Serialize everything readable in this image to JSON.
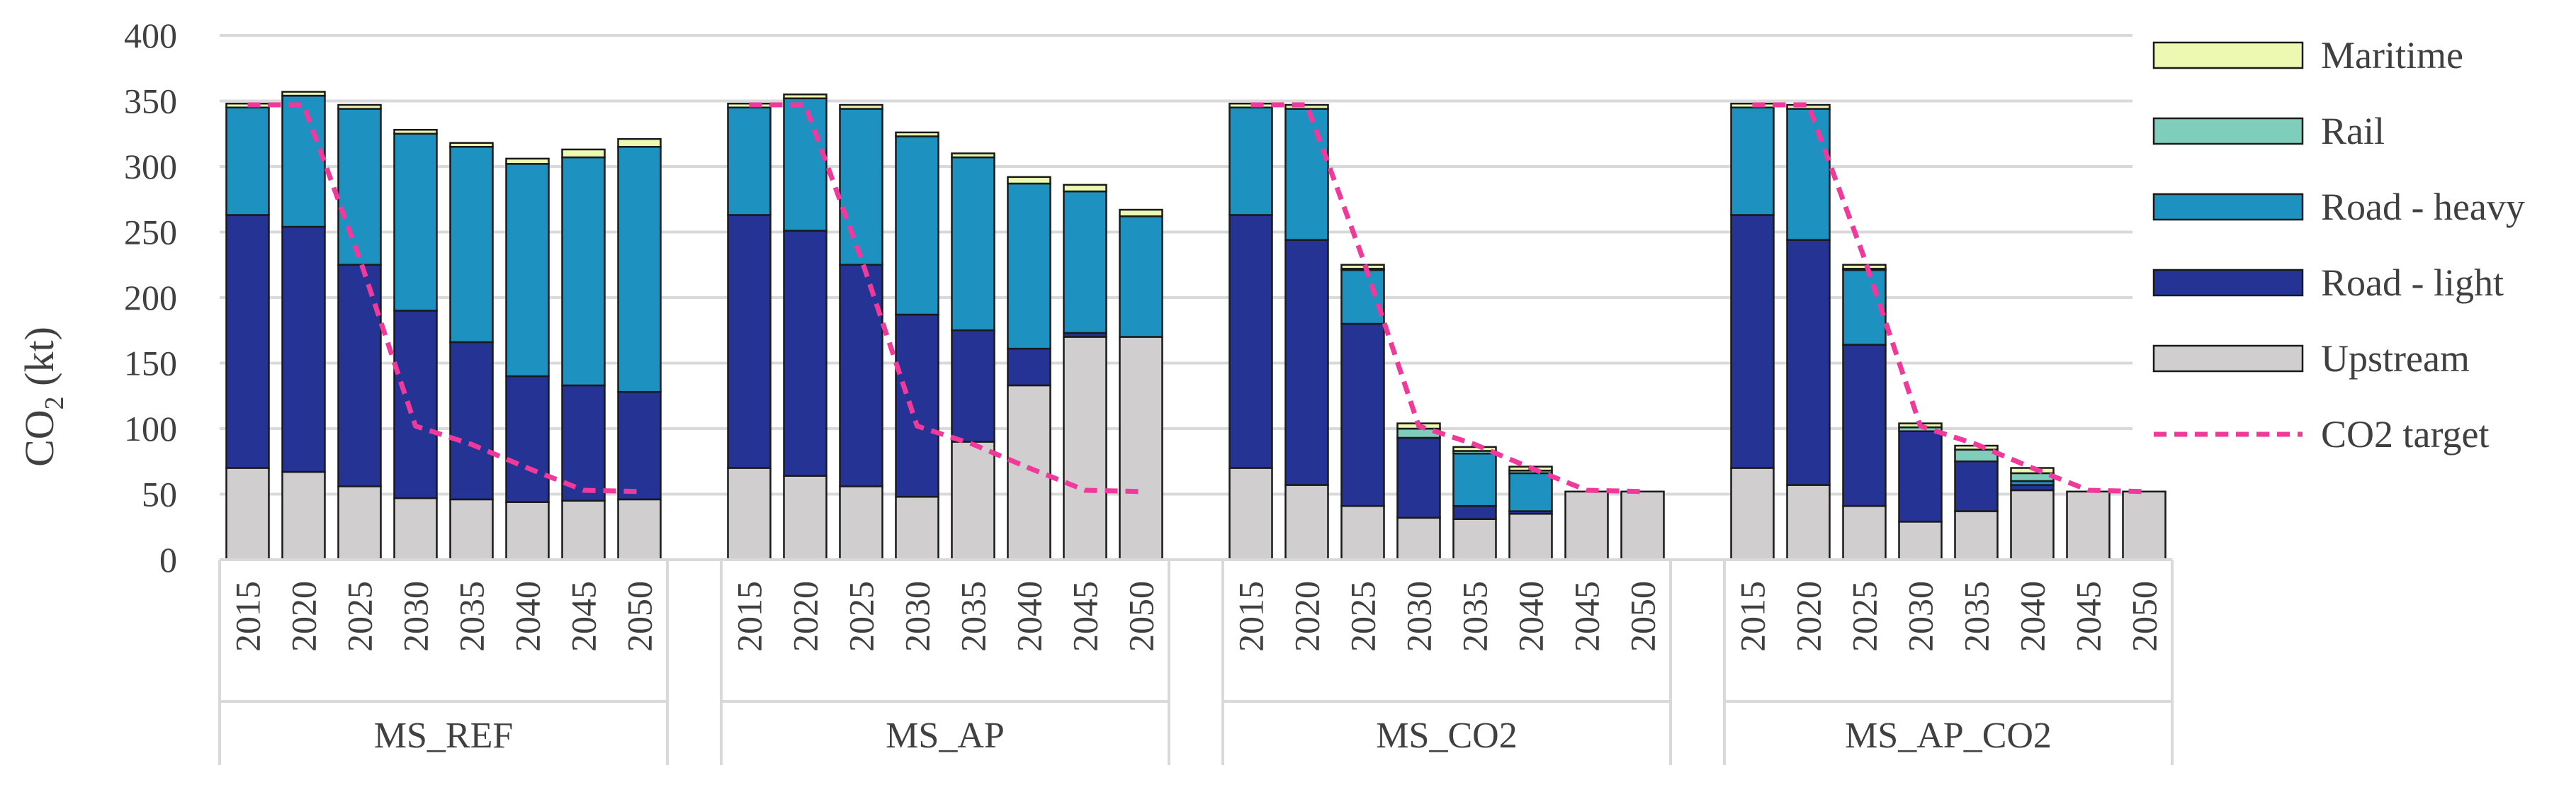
{
  "chart_data": {
    "type": "bar",
    "stacked": true,
    "ylabel": "CO",
    "ylabel_sub": "2",
    "ylabel_unit": " (kt)",
    "ylim": [
      0,
      400
    ],
    "yticks": [
      "0",
      "50",
      "100",
      "150",
      "200",
      "250",
      "300",
      "350",
      "400"
    ],
    "grid": true,
    "legend_position": "right",
    "groups": [
      {
        "name": "MS_REF",
        "years": [
          "2015",
          "2020",
          "2025",
          "2030",
          "2035",
          "2040",
          "2045",
          "2050"
        ],
        "stacks": [
          {
            "Upstream": 70,
            "Road - light": 193,
            "Road - heavy": 82,
            "Rail": 0,
            "Maritime": 3
          },
          {
            "Upstream": 67,
            "Road - light": 187,
            "Road - heavy": 100,
            "Rail": 0,
            "Maritime": 3
          },
          {
            "Upstream": 56,
            "Road - light": 169,
            "Road - heavy": 119,
            "Rail": 0,
            "Maritime": 3
          },
          {
            "Upstream": 47,
            "Road - light": 143,
            "Road - heavy": 135,
            "Rail": 0,
            "Maritime": 3
          },
          {
            "Upstream": 46,
            "Road - light": 120,
            "Road - heavy": 149,
            "Rail": 0,
            "Maritime": 3
          },
          {
            "Upstream": 44,
            "Road - light": 96,
            "Road - heavy": 162,
            "Rail": 0,
            "Maritime": 4
          },
          {
            "Upstream": 45,
            "Road - light": 88,
            "Road - heavy": 174,
            "Rail": 0,
            "Maritime": 6
          },
          {
            "Upstream": 46,
            "Road - light": 82,
            "Road - heavy": 187,
            "Rail": 0,
            "Maritime": 6
          }
        ],
        "target": [
          347,
          347,
          230,
          102,
          88,
          70,
          53,
          52
        ]
      },
      {
        "name": "MS_AP",
        "years": [
          "2015",
          "2020",
          "2025",
          "2030",
          "2035",
          "2040",
          "2045",
          "2050"
        ],
        "stacks": [
          {
            "Upstream": 70,
            "Road - light": 193,
            "Road - heavy": 82,
            "Rail": 0,
            "Maritime": 3
          },
          {
            "Upstream": 64,
            "Road - light": 187,
            "Road - heavy": 101,
            "Rail": 0,
            "Maritime": 3
          },
          {
            "Upstream": 56,
            "Road - light": 169,
            "Road - heavy": 119,
            "Rail": 0,
            "Maritime": 3
          },
          {
            "Upstream": 48,
            "Road - light": 139,
            "Road - heavy": 136,
            "Rail": 0,
            "Maritime": 3
          },
          {
            "Upstream": 90,
            "Road - light": 85,
            "Road - heavy": 132,
            "Rail": 0,
            "Maritime": 3
          },
          {
            "Upstream": 133,
            "Road - light": 28,
            "Road - heavy": 126,
            "Rail": 0,
            "Maritime": 5
          },
          {
            "Upstream": 170,
            "Road - light": 3,
            "Road - heavy": 108,
            "Rail": 0,
            "Maritime": 5
          },
          {
            "Upstream": 170,
            "Road - light": 0,
            "Road - heavy": 92,
            "Rail": 0,
            "Maritime": 5
          }
        ],
        "target": [
          347,
          347,
          230,
          102,
          88,
          70,
          53,
          52
        ]
      },
      {
        "name": "MS_CO2",
        "years": [
          "2015",
          "2020",
          "2025",
          "2030",
          "2035",
          "2040",
          "2045",
          "2050"
        ],
        "stacks": [
          {
            "Upstream": 70,
            "Road - light": 193,
            "Road - heavy": 82,
            "Rail": 0,
            "Maritime": 3
          },
          {
            "Upstream": 57,
            "Road - light": 187,
            "Road - heavy": 100,
            "Rail": 0,
            "Maritime": 3
          },
          {
            "Upstream": 41,
            "Road - light": 139,
            "Road - heavy": 41,
            "Rail": 1,
            "Maritime": 3
          },
          {
            "Upstream": 32,
            "Road - light": 61,
            "Road - heavy": 0,
            "Rail": 7,
            "Maritime": 4
          },
          {
            "Upstream": 31,
            "Road - light": 10,
            "Road - heavy": 40,
            "Rail": 2,
            "Maritime": 3
          },
          {
            "Upstream": 35,
            "Road - light": 2,
            "Road - heavy": 29,
            "Rail": 2,
            "Maritime": 3
          },
          {
            "Upstream": 52,
            "Road - light": 0,
            "Road - heavy": 0,
            "Rail": 0,
            "Maritime": 0
          },
          {
            "Upstream": 52,
            "Road - light": 0,
            "Road - heavy": 0,
            "Rail": 0,
            "Maritime": 0
          }
        ],
        "target": [
          347,
          347,
          230,
          102,
          88,
          70,
          53,
          52
        ]
      },
      {
        "name": "MS_AP_CO2",
        "years": [
          "2015",
          "2020",
          "2025",
          "2030",
          "2035",
          "2040",
          "2045",
          "2050"
        ],
        "stacks": [
          {
            "Upstream": 70,
            "Road - light": 193,
            "Road - heavy": 82,
            "Rail": 0,
            "Maritime": 3
          },
          {
            "Upstream": 57,
            "Road - light": 187,
            "Road - heavy": 100,
            "Rail": 0,
            "Maritime": 3
          },
          {
            "Upstream": 41,
            "Road - light": 123,
            "Road - heavy": 57,
            "Rail": 1,
            "Maritime": 3
          },
          {
            "Upstream": 29,
            "Road - light": 69,
            "Road - heavy": 0,
            "Rail": 3,
            "Maritime": 3
          },
          {
            "Upstream": 37,
            "Road - light": 38,
            "Road - heavy": 0,
            "Rail": 9,
            "Maritime": 3
          },
          {
            "Upstream": 53,
            "Road - light": 4,
            "Road - heavy": 3,
            "Rail": 6,
            "Maritime": 4
          },
          {
            "Upstream": 52,
            "Road - light": 0,
            "Road - heavy": 0,
            "Rail": 0,
            "Maritime": 0
          },
          {
            "Upstream": 52,
            "Road - light": 0,
            "Road - heavy": 0,
            "Rail": 0,
            "Maritime": 0
          }
        ],
        "target": [
          347,
          347,
          230,
          102,
          88,
          70,
          53,
          52
        ]
      }
    ],
    "series": [
      {
        "name": "Upstream",
        "color": "#d0cece"
      },
      {
        "name": "Road - light",
        "color": "#253494"
      },
      {
        "name": "Road - heavy",
        "color": "#1d91c0"
      },
      {
        "name": "Rail",
        "color": "#7fcdbb"
      },
      {
        "name": "Maritime",
        "color": "#edf8b1"
      }
    ],
    "line_series": {
      "name": "CO2 target",
      "color": "#f0399a",
      "style": "dashed"
    },
    "legend": [
      "Maritime",
      "Rail",
      "Road - heavy",
      "Road - light",
      "Upstream",
      "CO2 target"
    ]
  }
}
